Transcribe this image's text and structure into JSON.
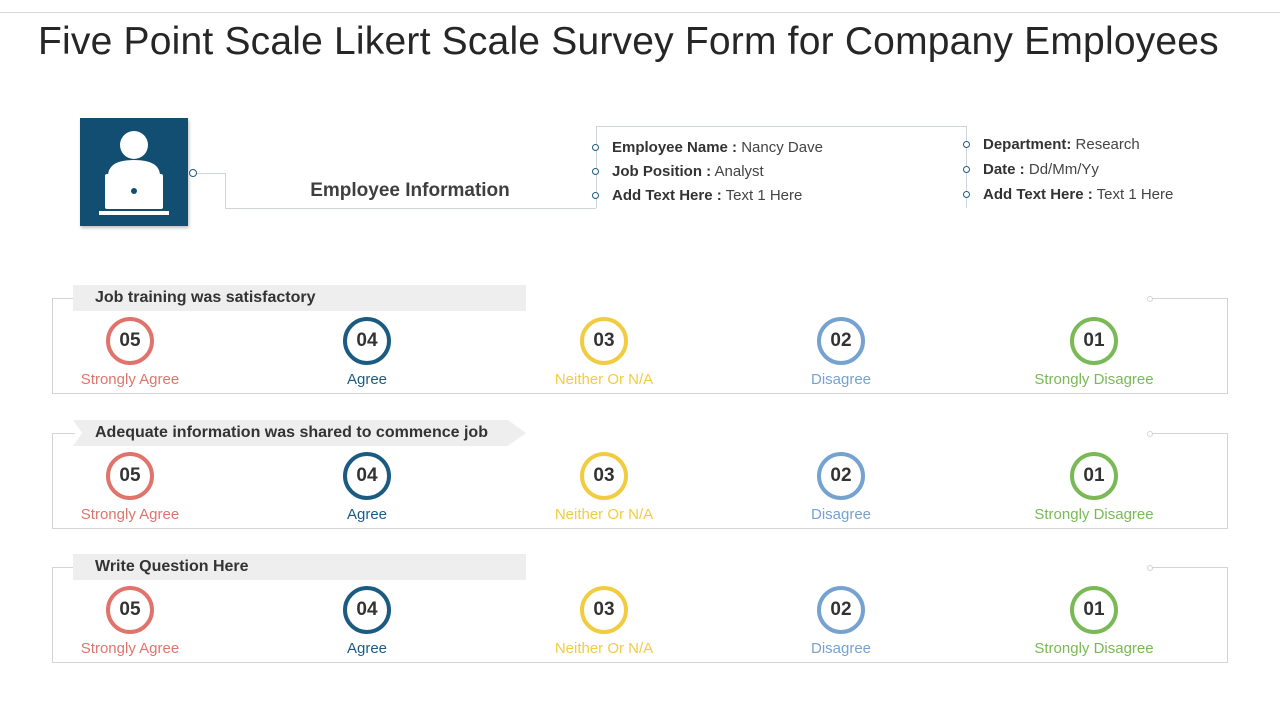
{
  "title": "Five Point Scale Likert Scale Survey Form for Company Employees",
  "employee": {
    "section_label": "Employee Information",
    "left_fields": [
      {
        "label": "Employee Name :",
        "value": "Nancy Dave"
      },
      {
        "label": "Job Position :",
        "value": "Analyst"
      },
      {
        "label": "Add  Text Here :",
        "value": "Text 1 Here"
      }
    ],
    "right_fields": [
      {
        "label": "Department:",
        "value": "Research"
      },
      {
        "label": "Date :",
        "value": "Dd/Mm/Yy"
      },
      {
        "label": "Add  Text Here :",
        "value": "Text 1 Here"
      }
    ],
    "icon": "user-laptop-icon"
  },
  "options": [
    {
      "number": "05",
      "label": "Strongly Agree",
      "color": "#e0746d"
    },
    {
      "number": "04",
      "label": "Agree",
      "color": "#1b5b82"
    },
    {
      "number": "03",
      "label": "Neither Or N/A",
      "color": "#f2cc40"
    },
    {
      "number": "02",
      "label": "Disagree",
      "color": "#76a2cf"
    },
    {
      "number": "01",
      "label": "Strongly Disagree",
      "color": "#7ab956"
    }
  ],
  "questions": [
    {
      "text": "Job training was satisfactory"
    },
    {
      "text": "Adequate information was shared to commence job"
    },
    {
      "text": "Write Question Here"
    }
  ],
  "colors": {
    "accent": "#124e72",
    "label_bg": "#eeeeee"
  }
}
